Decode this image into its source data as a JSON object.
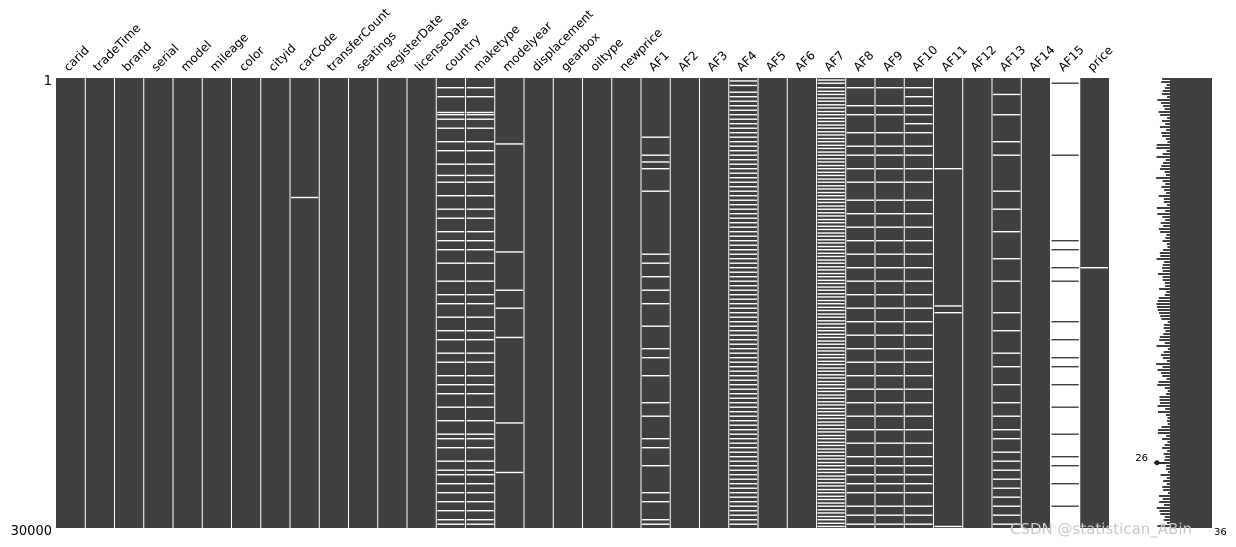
{
  "chart_data": {
    "type": "heatmap",
    "subtype": "missingno-matrix",
    "row_start_label": "1",
    "row_end_label": "30000",
    "n_rows": 30000,
    "filled_color": "#404040",
    "missing_color": "#ffffff",
    "columns": [
      {
        "name": "carid",
        "missing": []
      },
      {
        "name": "tradeTime",
        "missing": []
      },
      {
        "name": "brand",
        "missing": []
      },
      {
        "name": "serial",
        "missing": []
      },
      {
        "name": "model",
        "missing": []
      },
      {
        "name": "mileage",
        "missing": []
      },
      {
        "name": "color",
        "missing": []
      },
      {
        "name": "cityid",
        "missing": []
      },
      {
        "name": "carCode",
        "missing": [
          0.264
        ]
      },
      {
        "name": "transferCount",
        "missing": []
      },
      {
        "name": "seatings",
        "missing": []
      },
      {
        "name": "registerDate",
        "missing": []
      },
      {
        "name": "licenseDate",
        "missing": []
      },
      {
        "name": "country",
        "missing": [
          0.02,
          0.04,
          0.075,
          0.08,
          0.09,
          0.11,
          0.14,
          0.16,
          0.19,
          0.215,
          0.23,
          0.26,
          0.29,
          0.31,
          0.34,
          0.36,
          0.38,
          0.41,
          0.45,
          0.48,
          0.5,
          0.53,
          0.56,
          0.58,
          0.61,
          0.63,
          0.66,
          0.68,
          0.7,
          0.73,
          0.76,
          0.79,
          0.8,
          0.82,
          0.85,
          0.87,
          0.88,
          0.9,
          0.92,
          0.94,
          0.96,
          0.98,
          0.99
        ]
      },
      {
        "name": "maketype",
        "missing": [
          0.02,
          0.04,
          0.075,
          0.08,
          0.09,
          0.11,
          0.14,
          0.16,
          0.19,
          0.215,
          0.23,
          0.26,
          0.29,
          0.31,
          0.34,
          0.36,
          0.38,
          0.41,
          0.45,
          0.48,
          0.5,
          0.53,
          0.56,
          0.58,
          0.61,
          0.63,
          0.66,
          0.68,
          0.7,
          0.73,
          0.76,
          0.79,
          0.8,
          0.82,
          0.85,
          0.87,
          0.88,
          0.9,
          0.92,
          0.94,
          0.96,
          0.98,
          0.99
        ]
      },
      {
        "name": "modelyear",
        "missing": [
          0.145,
          0.385,
          0.47,
          0.51,
          0.575,
          0.765,
          0.875
        ]
      },
      {
        "name": "displacement",
        "missing": []
      },
      {
        "name": "gearbox",
        "missing": []
      },
      {
        "name": "oiltype",
        "missing": []
      },
      {
        "name": "newprice",
        "missing": []
      },
      {
        "name": "AF1",
        "missing": [
          0.13,
          0.17,
          0.185,
          0.2,
          0.25,
          0.39,
          0.41,
          0.44,
          0.47,
          0.5,
          0.55,
          0.6,
          0.62,
          0.66,
          0.72,
          0.75,
          0.8,
          0.82,
          0.86,
          0.92,
          0.94,
          0.98,
          0.99
        ]
      },
      {
        "name": "AF2",
        "missing": []
      },
      {
        "name": "AF3",
        "missing": []
      },
      {
        "name": "AF4",
        "missing": [
          0.005,
          0.015,
          0.03,
          0.04,
          0.05,
          0.06,
          0.07,
          0.08,
          0.09,
          0.1,
          0.11,
          0.12,
          0.13,
          0.14,
          0.15,
          0.16,
          0.17,
          0.18,
          0.19,
          0.2,
          0.21,
          0.22,
          0.23,
          0.24,
          0.25,
          0.26,
          0.27,
          0.28,
          0.29,
          0.3,
          0.31,
          0.32,
          0.33,
          0.34,
          0.35,
          0.36,
          0.37,
          0.38,
          0.39,
          0.4,
          0.41,
          0.42,
          0.43,
          0.44,
          0.45,
          0.46,
          0.47,
          0.48,
          0.49,
          0.5,
          0.51,
          0.52,
          0.53,
          0.54,
          0.55,
          0.56,
          0.57,
          0.58,
          0.59,
          0.6,
          0.61,
          0.62,
          0.63,
          0.64,
          0.65,
          0.66,
          0.67,
          0.68,
          0.69,
          0.7,
          0.71,
          0.72,
          0.73,
          0.74,
          0.75,
          0.76,
          0.77,
          0.78,
          0.79,
          0.8,
          0.81,
          0.82,
          0.83,
          0.84,
          0.85,
          0.86,
          0.87,
          0.88,
          0.89,
          0.9,
          0.91,
          0.92,
          0.93,
          0.94,
          0.95,
          0.96,
          0.97,
          0.98,
          0.99
        ]
      },
      {
        "name": "AF5",
        "missing": []
      },
      {
        "name": "AF6",
        "missing": []
      },
      {
        "name": "AF7",
        "missing": [
          0.003,
          0.01,
          0.02,
          0.028,
          0.035,
          0.043,
          0.05,
          0.058,
          0.065,
          0.073,
          0.08,
          0.088,
          0.095,
          0.103,
          0.11,
          0.118,
          0.125,
          0.133,
          0.14,
          0.148,
          0.155,
          0.163,
          0.17,
          0.178,
          0.185,
          0.193,
          0.2,
          0.208,
          0.215,
          0.223,
          0.23,
          0.238,
          0.245,
          0.253,
          0.26,
          0.268,
          0.275,
          0.283,
          0.29,
          0.298,
          0.305,
          0.313,
          0.32,
          0.328,
          0.335,
          0.343,
          0.35,
          0.358,
          0.365,
          0.373,
          0.38,
          0.388,
          0.395,
          0.403,
          0.41,
          0.418,
          0.425,
          0.433,
          0.44,
          0.448,
          0.455,
          0.463,
          0.47,
          0.478,
          0.485,
          0.493,
          0.5,
          0.508,
          0.515,
          0.523,
          0.53,
          0.538,
          0.545,
          0.553,
          0.56,
          0.568,
          0.575,
          0.583,
          0.59,
          0.598,
          0.605,
          0.613,
          0.62,
          0.628,
          0.635,
          0.643,
          0.65,
          0.658,
          0.665,
          0.673,
          0.68,
          0.688,
          0.695,
          0.703,
          0.71,
          0.718,
          0.725,
          0.733,
          0.74,
          0.748,
          0.755,
          0.763,
          0.77,
          0.778,
          0.785,
          0.793,
          0.8,
          0.808,
          0.815,
          0.823,
          0.83,
          0.838,
          0.845,
          0.853,
          0.86,
          0.868,
          0.875,
          0.883,
          0.89,
          0.898,
          0.905,
          0.913,
          0.92,
          0.928,
          0.935,
          0.943,
          0.95,
          0.958,
          0.965,
          0.973,
          0.98,
          0.988,
          0.995
        ]
      },
      {
        "name": "AF8",
        "missing": [
          0.02,
          0.06,
          0.08,
          0.12,
          0.15,
          0.17,
          0.2,
          0.23,
          0.27,
          0.3,
          0.33,
          0.36,
          0.39,
          0.42,
          0.45,
          0.48,
          0.51,
          0.54,
          0.57,
          0.6,
          0.63,
          0.66,
          0.69,
          0.72,
          0.75,
          0.78,
          0.81,
          0.84,
          0.86,
          0.88,
          0.9,
          0.92,
          0.95,
          0.97,
          0.99
        ]
      },
      {
        "name": "AF9",
        "missing": [
          0.02,
          0.06,
          0.08,
          0.12,
          0.15,
          0.17,
          0.2,
          0.23,
          0.27,
          0.3,
          0.33,
          0.36,
          0.39,
          0.42,
          0.45,
          0.48,
          0.51,
          0.54,
          0.57,
          0.6,
          0.63,
          0.66,
          0.69,
          0.72,
          0.75,
          0.78,
          0.81,
          0.84,
          0.86,
          0.88,
          0.9,
          0.92,
          0.95,
          0.97,
          0.99
        ]
      },
      {
        "name": "AF10",
        "missing": [
          0.02,
          0.04,
          0.06,
          0.08,
          0.1,
          0.12,
          0.15,
          0.17,
          0.2,
          0.23,
          0.27,
          0.3,
          0.33,
          0.36,
          0.39,
          0.42,
          0.45,
          0.48,
          0.51,
          0.54,
          0.57,
          0.6,
          0.63,
          0.66,
          0.69,
          0.72,
          0.75,
          0.78,
          0.81,
          0.84,
          0.86,
          0.88,
          0.9,
          0.92,
          0.95,
          0.97,
          0.99
        ]
      },
      {
        "name": "AF11",
        "missing": [
          0.2,
          0.505,
          0.52,
          0.995
        ]
      },
      {
        "name": "AF12",
        "missing": []
      },
      {
        "name": "AF13",
        "missing": [
          0.035,
          0.08,
          0.14,
          0.17,
          0.25,
          0.29,
          0.34,
          0.4,
          0.45,
          0.52,
          0.56,
          0.61,
          0.64,
          0.68,
          0.72,
          0.75,
          0.78,
          0.8,
          0.83,
          0.85,
          0.87,
          0.89,
          0.91,
          0.93,
          0.95,
          0.97,
          0.99
        ]
      },
      {
        "name": "AF14",
        "missing": []
      },
      {
        "name": "AF15",
        "filled": [
          0.01,
          0.17,
          0.36,
          0.38,
          0.42,
          0.45,
          0.54,
          0.58,
          0.62,
          0.64,
          0.68,
          0.73,
          0.79,
          0.84,
          0.86,
          0.9,
          0.95
        ]
      },
      {
        "name": "price",
        "missing": [
          0.42
        ]
      }
    ],
    "sparkline": {
      "min_label": "26",
      "max_label": "36",
      "min_at": 0.855
    }
  },
  "watermark": "CSDN @statistican_ABin"
}
